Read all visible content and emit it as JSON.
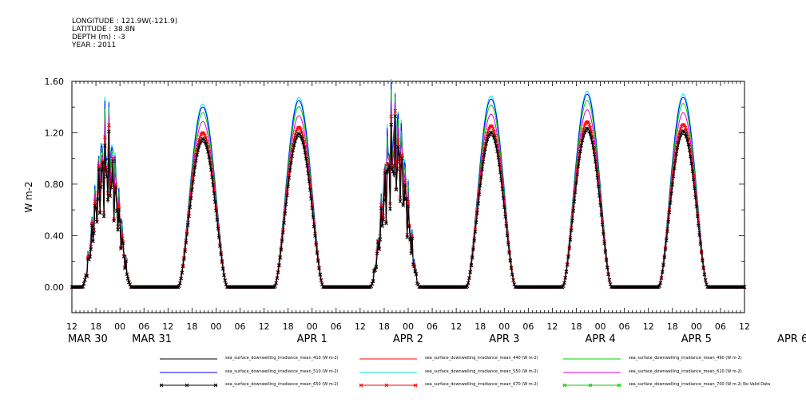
{
  "header": [
    "LONGITUDE : 121.9W(-121.9)",
    "LATITUDE : 38.8N",
    "DEPTH (m) : -3",
    "YEAR : 2011"
  ],
  "chart_data": {
    "type": "line",
    "ylabel": "W m-2",
    "ylim": [
      -0.2,
      1.6
    ],
    "yticks": [
      "0.00",
      "0.40",
      "0.80",
      "1.20",
      "1.60"
    ],
    "ytick_values": [
      0,
      0.4,
      0.8,
      1.2,
      1.6
    ],
    "xlim_hours": [
      0,
      168
    ],
    "x_hour_ticks": [
      "12",
      "18",
      "00",
      "06",
      "12",
      "18",
      "00",
      "06",
      "12",
      "18",
      "00",
      "06",
      "12",
      "18",
      "00",
      "06",
      "12",
      "18",
      "00",
      "06",
      "12",
      "18",
      "00",
      "06",
      "12",
      "18",
      "00",
      "06",
      "12"
    ],
    "date_labels": [
      "MAR 30",
      "MAR 31",
      "APR  1",
      "APR  2",
      "APR  3",
      "APR  4",
      "APR  5",
      "APR  6"
    ],
    "days": [
      {
        "label": "MAR 30",
        "peak_410": 1.12,
        "cloudy": true
      },
      {
        "label": "MAR 31",
        "peak_410": 1.13,
        "cloudy": false
      },
      {
        "label": "APR  1",
        "peak_410": 1.17,
        "cloudy": false
      },
      {
        "label": "APR  2",
        "peak_410": 1.25,
        "cloudy": true
      },
      {
        "label": "APR  3",
        "peak_410": 1.18,
        "cloudy": false
      },
      {
        "label": "APR  4",
        "peak_410": 1.21,
        "cloudy": false
      },
      {
        "label": "APR  5",
        "peak_410": 1.19,
        "cloudy": false
      }
    ],
    "series": [
      {
        "name": "sea_surface_downwelling_irradiance_mean_410 (W m-2)",
        "color": "#000000",
        "marker": "none",
        "peak_ratio": 1.0
      },
      {
        "name": "sea_surface_downwelling_irradiance_mean_440 (W m-2)",
        "color": "#ff0000",
        "marker": "none",
        "peak_ratio": 1.07
      },
      {
        "name": "sea_surface_downwelling_irradiance_mean_490 (W m-2)",
        "color": "#00cc00",
        "marker": "none",
        "peak_ratio": 1.2
      },
      {
        "name": "sea_surface_downwelling_irradiance_mean_510 (W m-2)",
        "color": "#0000ff",
        "marker": "none",
        "peak_ratio": 1.24
      },
      {
        "name": "sea_surface_downwelling_irradiance_mean_550 (W m-2)",
        "color": "#00e0e0",
        "marker": "none",
        "peak_ratio": 1.26
      },
      {
        "name": "sea_surface_downwelling_irradiance_mean_610 (W m-2)",
        "color": "#e000e0",
        "marker": "none",
        "peak_ratio": 1.14
      },
      {
        "name": "sea_surface_downwelling_irradiance_mean_650 (W m-2)",
        "color": "#000000",
        "marker": "x",
        "peak_ratio": 1.02
      },
      {
        "name": "sea_surface_downwelling_irradiance_mean_670 (W m-2)",
        "color": "#ff0000",
        "marker": "x",
        "peak_ratio": 1.06
      },
      {
        "name": "sea_surface_downwelling_irradiance_mean_700 (W m-2) No Valid Data",
        "color": "#00cc00",
        "marker": "x",
        "peak_ratio": null
      }
    ]
  }
}
